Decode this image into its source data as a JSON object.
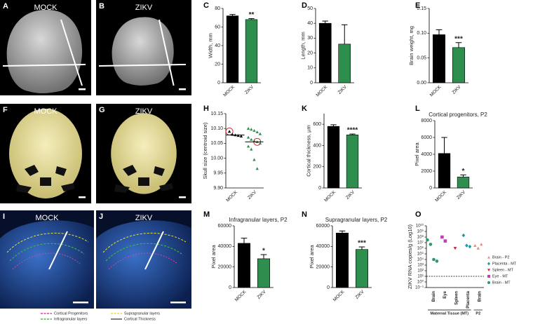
{
  "images": [
    {
      "label": "A",
      "caption": "MOCK"
    },
    {
      "label": "B",
      "caption": "ZIKV"
    },
    {
      "label": "F",
      "caption": "MOCK"
    },
    {
      "label": "G",
      "caption": "ZIKV"
    },
    {
      "label": "I",
      "caption": "MOCK"
    },
    {
      "label": "J",
      "caption": "ZIKV"
    }
  ],
  "image_legend": [
    {
      "text": "Cortical Progenitors",
      "color": "#e040a0"
    },
    {
      "text": "Supragranular layers",
      "color": "#e8e040"
    },
    {
      "text": "Infragranular layers",
      "color": "#40c040"
    },
    {
      "text": "Cortical Thickness",
      "color": "#ffffff"
    }
  ],
  "chart_data": [
    {
      "panel": "C",
      "type": "bar",
      "ylabel": "Width, mm",
      "categories": [
        "MOCK",
        "ZIKV"
      ],
      "values": [
        72,
        68
      ],
      "errors": [
        1.5,
        1
      ],
      "colors": [
        "#000000",
        "#2e8e4e"
      ],
      "annotations": [
        null,
        "**"
      ],
      "ylim": [
        0,
        80
      ],
      "yticks": [
        0,
        20,
        40,
        60,
        80
      ]
    },
    {
      "panel": "D",
      "type": "bar",
      "ylabel": "Length, mm",
      "categories": [
        "MOCK",
        "ZIKV"
      ],
      "values": [
        40,
        26
      ],
      "errors": [
        1.5,
        13
      ],
      "colors": [
        "#000000",
        "#2e8e4e"
      ],
      "annotations": [
        null,
        null
      ],
      "ylim": [
        0,
        50
      ],
      "yticks": [
        0,
        10,
        20,
        30,
        40,
        50
      ]
    },
    {
      "panel": "E",
      "type": "bar",
      "ylabel": "Brain weight, mg",
      "categories": [
        "MOCK",
        "ZIKV"
      ],
      "values": [
        0.097,
        0.071
      ],
      "errors": [
        0.01,
        0.01
      ],
      "colors": [
        "#000000",
        "#2e8e4e"
      ],
      "annotations": [
        null,
        "***"
      ],
      "ylim": [
        0,
        0.15
      ],
      "yticks": [
        {
          "value": 0,
          "label": "0.00"
        },
        0.05,
        {
          "value": 0.1,
          "label": "0.10"
        },
        0.15
      ]
    },
    {
      "panel": "H",
      "type": "dot",
      "ylabel": "Skull size (centroid size)",
      "categories": [
        "MOCK",
        "ZIKV"
      ],
      "values": [
        [
          10.09,
          10.08,
          10.078,
          10.076,
          10.074
        ],
        [
          10.1,
          10.097,
          10.093,
          10.088,
          10.082,
          10.07,
          10.063,
          10.058,
          10.055,
          10.05,
          10.04,
          10.03,
          9.995,
          9.965
        ]
      ],
      "means": [
        10.078,
        10.055
      ],
      "highlight": [
        0,
        8
      ],
      "colors": [
        "#000000",
        "#2e8e4e"
      ],
      "ylim": [
        9.9,
        10.15
      ],
      "yticks": [
        {
          "value": 9.9,
          "label": "9.90"
        },
        9.95,
        {
          "value": 10,
          "label": "10.00"
        },
        10.05,
        {
          "value": 10.1,
          "label": "10.10"
        },
        10.15
      ]
    },
    {
      "panel": "K",
      "type": "bar",
      "ylabel": "Cortical thickness, µm",
      "categories": [
        "MOCK",
        "ZIKV"
      ],
      "values": [
        580,
        500
      ],
      "errors": [
        15,
        8
      ],
      "colors": [
        "#000000",
        "#2e8e4e"
      ],
      "annotations": [
        null,
        "****"
      ],
      "ylim": [
        0,
        700
      ],
      "yticks": [
        0,
        200,
        400,
        600
      ]
    },
    {
      "panel": "L",
      "type": "bar",
      "title": "Cortical progenitors, P2",
      "ylabel": "Pixel area",
      "categories": [
        "MOCK",
        "ZIKV"
      ],
      "values": [
        4100,
        1300
      ],
      "errors": [
        1900,
        250
      ],
      "colors": [
        "#000000",
        "#2e8e4e"
      ],
      "annotations": [
        null,
        "*"
      ],
      "ylim": [
        0,
        8000
      ],
      "yticks": [
        0,
        2000,
        4000,
        6000,
        8000
      ]
    },
    {
      "panel": "M",
      "type": "bar",
      "title": "Infragranular layers, P2",
      "ylabel": "Pixel area",
      "categories": [
        "MOCK",
        "ZIKV"
      ],
      "values": [
        43000,
        28000
      ],
      "errors": [
        5000,
        4000
      ],
      "colors": [
        "#000000",
        "#2e8e4e"
      ],
      "annotations": [
        null,
        "*"
      ],
      "ylim": [
        0,
        60000
      ],
      "yticks": [
        0,
        20000,
        40000,
        60000
      ]
    },
    {
      "panel": "N",
      "type": "bar",
      "title": "Supragranular layers, P2",
      "ylabel": "Pixel area",
      "categories": [
        "MOCK",
        "ZIKV"
      ],
      "values": [
        53000,
        37000
      ],
      "errors": [
        2000,
        2500
      ],
      "colors": [
        "#000000",
        "#2e8e4e"
      ],
      "annotations": [
        null,
        "***"
      ],
      "ylim": [
        0,
        60000
      ],
      "yticks": [
        0,
        20000,
        40000,
        60000
      ]
    },
    {
      "panel": "O",
      "type": "dot_log",
      "log": true,
      "ylabel": "ZIKV RNA copies/g (Log10)",
      "categories": [
        "Brain",
        "Eye",
        "Spleen",
        "Placenta",
        "Brain"
      ],
      "groups": [
        "Maternal Tissue (MT)",
        "P2"
      ],
      "category_groups": [
        0,
        0,
        0,
        0,
        1
      ],
      "threshold": 10,
      "series": [
        {
          "name": "Brain - P2",
          "color": "#e8907a",
          "marker": "triangle",
          "values": [
            null,
            null,
            null,
            null,
            [
              3000000,
              1000000,
              5000000
            ]
          ]
        },
        {
          "name": "Placenta - MT",
          "color": "#1a9aa0",
          "marker": "diamond",
          "values": [
            null,
            null,
            null,
            [
              200000000,
              3000000,
              2000000
            ],
            null
          ]
        },
        {
          "name": "Spleen - MT",
          "color": "#c0203a",
          "marker": "down",
          "values": [
            null,
            null,
            [
              1000000
            ],
            null,
            null
          ]
        },
        {
          "name": "Eye - MT",
          "color": "#c040b0",
          "marker": "square",
          "values": [
            null,
            [
              100000000,
              20000000
            ],
            null,
            null,
            null
          ]
        },
        {
          "name": "Brain - MT",
          "color": "#2a9a6a",
          "marker": "circle",
          "values": [
            [
              30000000,
              5000000,
              10000,
              5000
            ],
            null,
            null,
            null,
            null
          ]
        }
      ],
      "ylim": [
        0.1,
        10000000000
      ],
      "yticks": [
        {
          "value": 0.1,
          "label": "10⁻¹"
        },
        {
          "value": 1,
          "label": "10⁰"
        },
        {
          "value": 10,
          "label": "10¹"
        },
        {
          "value": 100,
          "label": "10²"
        },
        {
          "value": 1000,
          "label": "10³"
        },
        {
          "value": 10000,
          "label": "10⁴"
        },
        {
          "value": 100000,
          "label": "10⁵"
        },
        {
          "value": 1000000,
          "label": "10⁶"
        },
        {
          "value": 10000000,
          "label": "10⁷"
        },
        {
          "value": 100000000,
          "label": "10⁸"
        },
        {
          "value": 1000000000,
          "label": "10⁹"
        },
        {
          "value": 10000000000,
          "label": "10¹⁰"
        }
      ]
    }
  ]
}
